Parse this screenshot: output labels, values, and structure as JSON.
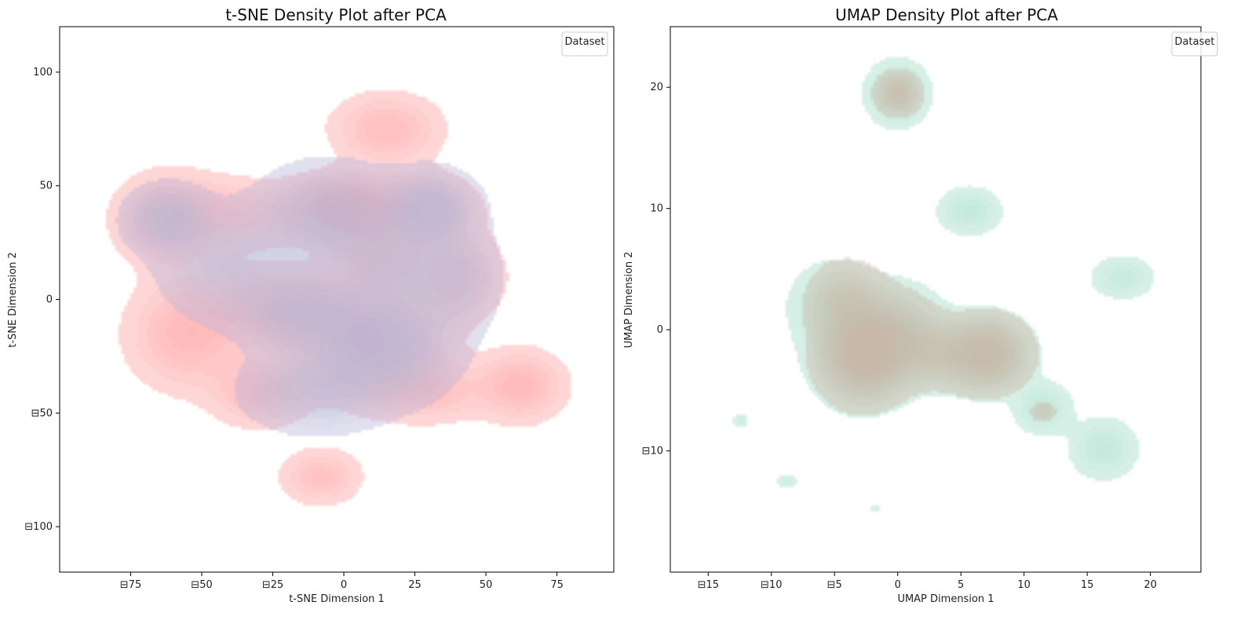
{
  "chart_data": [
    {
      "type": "area",
      "subtype": "kde-density-contour",
      "title": "t-SNE Density Plot after PCA",
      "xlabel": "t-SNE Dimension 1",
      "ylabel": "t-SNE Dimension 2",
      "xlim": [
        -100,
        95
      ],
      "ylim": [
        -120,
        120
      ],
      "xticks": [
        -75,
        -50,
        -25,
        0,
        25,
        50,
        75
      ],
      "yticks": [
        -100,
        -50,
        0,
        50,
        100
      ],
      "xtick_labels": [
        "⊟75",
        "⊟50",
        "⊟25",
        "0",
        "25",
        "50",
        "75"
      ],
      "ytick_labels": [
        "⊟100",
        "⊟50",
        "0",
        "50",
        "100"
      ],
      "legend": {
        "title": "Dataset",
        "entries": [],
        "placement": "top-right"
      },
      "grid": false,
      "series": [
        {
          "color": "#ff9e9e",
          "levels": 10,
          "components": [
            {
              "x": -62,
              "y": 35,
              "sx": 11,
              "sy": 12,
              "w": 0.7
            },
            {
              "x": -40,
              "y": 38,
              "sx": 14,
              "sy": 9,
              "w": 0.5
            },
            {
              "x": -55,
              "y": -15,
              "sx": 12,
              "sy": 14,
              "w": 0.8
            },
            {
              "x": -20,
              "y": -5,
              "sx": 16,
              "sy": 10,
              "w": 0.9
            },
            {
              "x": -5,
              "y": 40,
              "sx": 12,
              "sy": 8,
              "w": 0.7
            },
            {
              "x": 2,
              "y": 40,
              "sx": 8,
              "sy": 8,
              "w": 1.0
            },
            {
              "x": 12,
              "y": 20,
              "sx": 9,
              "sy": 9,
              "w": 0.7
            },
            {
              "x": 25,
              "y": 40,
              "sx": 12,
              "sy": 9,
              "w": 0.8
            },
            {
              "x": 15,
              "y": 75,
              "sx": 11,
              "sy": 9,
              "w": 0.7
            },
            {
              "x": 10,
              "y": -20,
              "sx": 14,
              "sy": 14,
              "w": 1.0
            },
            {
              "x": -30,
              "y": -40,
              "sx": 10,
              "sy": 9,
              "w": 0.7
            },
            {
              "x": 30,
              "y": -40,
              "sx": 12,
              "sy": 8,
              "w": 0.6
            },
            {
              "x": -8,
              "y": -78,
              "sx": 8,
              "sy": 7,
              "w": 0.6
            },
            {
              "x": 62,
              "y": -38,
              "sx": 9,
              "sy": 9,
              "w": 0.8
            },
            {
              "x": 40,
              "y": 10,
              "sx": 10,
              "sy": 12,
              "w": 0.5
            }
          ]
        },
        {
          "color": "#b7b5d8",
          "levels": 10,
          "components": [
            {
              "x": -62,
              "y": 35,
              "sx": 8,
              "sy": 8,
              "w": 0.9
            },
            {
              "x": -40,
              "y": 15,
              "sx": 14,
              "sy": 14,
              "w": 0.5
            },
            {
              "x": -5,
              "y": 35,
              "sx": 14,
              "sy": 13,
              "w": 0.8
            },
            {
              "x": 30,
              "y": 40,
              "sx": 9,
              "sy": 9,
              "w": 1.0
            },
            {
              "x": 12,
              "y": -20,
              "sx": 14,
              "sy": 13,
              "w": 1.2
            },
            {
              "x": -15,
              "y": -5,
              "sx": 12,
              "sy": 10,
              "w": 0.8
            },
            {
              "x": 20,
              "y": 15,
              "sx": 12,
              "sy": 12,
              "w": 0.6
            },
            {
              "x": -10,
              "y": -40,
              "sx": 14,
              "sy": 10,
              "w": 0.6
            },
            {
              "x": 40,
              "y": 10,
              "sx": 8,
              "sy": 14,
              "w": 0.5
            }
          ]
        }
      ]
    },
    {
      "type": "area",
      "subtype": "kde-density-contour",
      "title": "UMAP Density Plot after PCA",
      "xlabel": "UMAP Dimension 1",
      "ylabel": "UMAP Dimension 2",
      "xlim": [
        -18,
        24
      ],
      "ylim": [
        -20,
        25
      ],
      "xticks": [
        -15,
        -10,
        -5,
        0,
        5,
        10,
        15,
        20
      ],
      "yticks": [
        -10,
        0,
        10,
        20
      ],
      "xtick_labels": [
        "⊟15",
        "⊟10",
        "⊟5",
        "0",
        "5",
        "10",
        "15",
        "20"
      ],
      "ytick_labels": [
        "⊟10",
        "0",
        "10",
        "20"
      ],
      "legend": {
        "title": "Dataset",
        "entries": [],
        "placement": "top-right"
      },
      "grid": false,
      "series": [
        {
          "color": "#9fdcc6",
          "levels": 10,
          "components": [
            {
              "x": 0,
              "y": 19.5,
              "sx": 1.4,
              "sy": 1.5,
              "w": 0.8
            },
            {
              "x": 5.7,
              "y": 9.8,
              "sx": 1.4,
              "sy": 1.1,
              "w": 0.6
            },
            {
              "x": 17.8,
              "y": 4.3,
              "sx": 1.4,
              "sy": 1.0,
              "w": 0.5
            },
            {
              "x": -2.7,
              "y": -2,
              "sx": 2.2,
              "sy": 2.3,
              "w": 1.4
            },
            {
              "x": -5,
              "y": 2,
              "sx": 2.0,
              "sy": 2.0,
              "w": 0.6
            },
            {
              "x": 0,
              "y": 0,
              "sx": 2.2,
              "sy": 2.2,
              "w": 0.6
            },
            {
              "x": 3,
              "y": -2,
              "sx": 2.0,
              "sy": 1.6,
              "w": 0.5
            },
            {
              "x": 7,
              "y": -2,
              "sx": 2.0,
              "sy": 1.8,
              "w": 1.1
            },
            {
              "x": 11.5,
              "y": -6.5,
              "sx": 1.3,
              "sy": 1.2,
              "w": 0.6
            },
            {
              "x": 16.3,
              "y": -9.8,
              "sx": 1.5,
              "sy": 1.4,
              "w": 0.6
            },
            {
              "x": -12.5,
              "y": -7.5,
              "sx": 0.45,
              "sy": 0.35,
              "w": 0.3
            },
            {
              "x": -8.8,
              "y": -12.5,
              "sx": 0.5,
              "sy": 0.4,
              "w": 0.3
            },
            {
              "x": -1.8,
              "y": -14.7,
              "sx": 0.3,
              "sy": 0.25,
              "w": 0.2
            }
          ]
        },
        {
          "color": "#cdb4a4",
          "levels": 10,
          "components": [
            {
              "x": 0,
              "y": 19.5,
              "sx": 1.0,
              "sy": 1.0,
              "w": 0.9
            },
            {
              "x": -2.7,
              "y": -2,
              "sx": 2.0,
              "sy": 2.2,
              "w": 1.5
            },
            {
              "x": -4,
              "y": 2.5,
              "sx": 1.8,
              "sy": 1.8,
              "w": 0.6
            },
            {
              "x": 0,
              "y": -0.5,
              "sx": 2.0,
              "sy": 2.0,
              "w": 0.6
            },
            {
              "x": 3,
              "y": -2,
              "sx": 1.8,
              "sy": 1.5,
              "w": 0.5
            },
            {
              "x": 7,
              "y": -2,
              "sx": 1.9,
              "sy": 1.7,
              "w": 1.2
            },
            {
              "x": 11.5,
              "y": -6.8,
              "sx": 0.6,
              "sy": 0.5,
              "w": 0.4
            }
          ]
        }
      ]
    }
  ]
}
